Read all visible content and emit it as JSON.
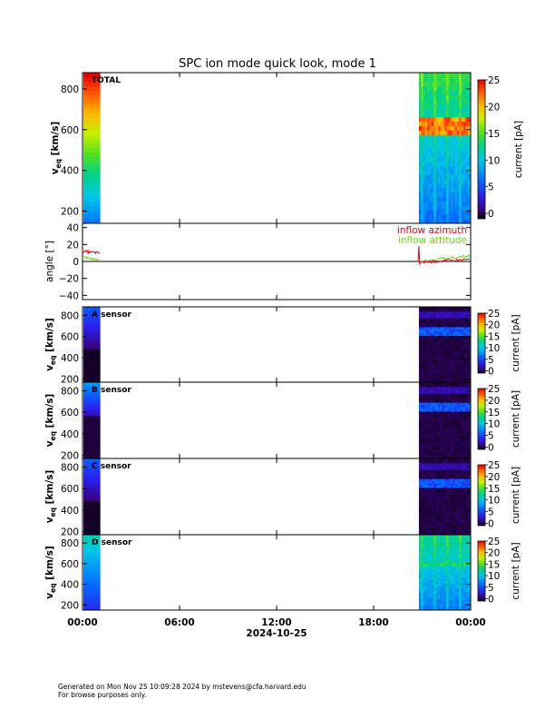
{
  "title": "SPC ion mode quick look, mode 1",
  "footer": {
    "generated": "Generated on Mon Nov 25 10:09:28 2024 by mstevens@cfa.harvard.edu",
    "note": "For browse purposes only."
  },
  "chart_data": [
    {
      "type": "heatmap",
      "panel": "total",
      "label": "TOTAL",
      "ylabel_main": "v",
      "ylabel_sub": "eq",
      "ylabel_unit": "[km/s]",
      "yticks": [
        "200",
        "400",
        "600",
        "800"
      ],
      "ylim": [
        140,
        880
      ],
      "colorbar_label": "current [pA]",
      "colorbar_ticks": [
        "0",
        "5",
        "10",
        "15",
        "20",
        "25"
      ],
      "clim": [
        -1,
        25
      ],
      "colormap": "rainbow",
      "data_windows": [
        [
          0,
          1.1
        ],
        [
          20.8,
          24
        ]
      ]
    },
    {
      "type": "line",
      "panel": "angle",
      "ylabel": "angle [°]",
      "yticks": [
        "−40",
        "−20",
        "0",
        "20",
        "40"
      ],
      "ylim": [
        -45,
        45
      ],
      "reference_line": 0,
      "series": [
        {
          "name": "inflow azimuth",
          "color": "#e8001c"
        },
        {
          "name": "inflow attitude",
          "color": "#7ad31c"
        }
      ]
    },
    {
      "type": "heatmap",
      "panel": "A",
      "label": "A sensor",
      "ylabel_main": "v",
      "ylabel_sub": "eq",
      "ylabel_unit": "[km/s]",
      "yticks": [
        "200",
        "400",
        "600",
        "800"
      ],
      "ylim": [
        170,
        880
      ],
      "colorbar_label": "current [pA]",
      "colorbar_ticks": [
        "0",
        "5",
        "10",
        "15",
        "20",
        "25"
      ],
      "clim": [
        -1,
        25
      ],
      "colormap": "rainbow-black"
    },
    {
      "type": "heatmap",
      "panel": "B",
      "label": "B sensor",
      "ylabel_main": "v",
      "ylabel_sub": "eq",
      "ylabel_unit": "[km/s]",
      "yticks": [
        "200",
        "400",
        "600",
        "800"
      ],
      "ylim": [
        170,
        880
      ],
      "colorbar_label": "current [pA]",
      "colorbar_ticks": [
        "0",
        "5",
        "10",
        "15",
        "20",
        "25"
      ],
      "clim": [
        -1,
        25
      ],
      "colormap": "rainbow-black"
    },
    {
      "type": "heatmap",
      "panel": "C",
      "label": "C sensor",
      "ylabel_main": "v",
      "ylabel_sub": "eq",
      "ylabel_unit": "[km/s]",
      "yticks": [
        "200",
        "400",
        "600",
        "800"
      ],
      "ylim": [
        170,
        880
      ],
      "colorbar_label": "current [pA]",
      "colorbar_ticks": [
        "0",
        "5",
        "10",
        "15",
        "20",
        "25"
      ],
      "clim": [
        -1,
        25
      ],
      "colormap": "rainbow-black"
    },
    {
      "type": "heatmap",
      "panel": "D",
      "label": "D sensor",
      "ylabel_main": "v",
      "ylabel_sub": "eq",
      "ylabel_unit": "[km/s]",
      "yticks": [
        "200",
        "400",
        "600",
        "800"
      ],
      "ylim": [
        150,
        880
      ],
      "colorbar_label": "current [pA]",
      "colorbar_ticks": [
        "0",
        "5",
        "10",
        "15",
        "20",
        "25"
      ],
      "clim": [
        -1,
        25
      ],
      "colormap": "rainbow-black"
    }
  ],
  "x_axis": {
    "ticks": [
      "00:00",
      "06:00",
      "12:00",
      "18:00",
      "00:00"
    ],
    "tick_hours": [
      0,
      6,
      12,
      18,
      24
    ],
    "date_label": "2024-10-25",
    "xlim_hours": [
      0,
      24
    ]
  }
}
